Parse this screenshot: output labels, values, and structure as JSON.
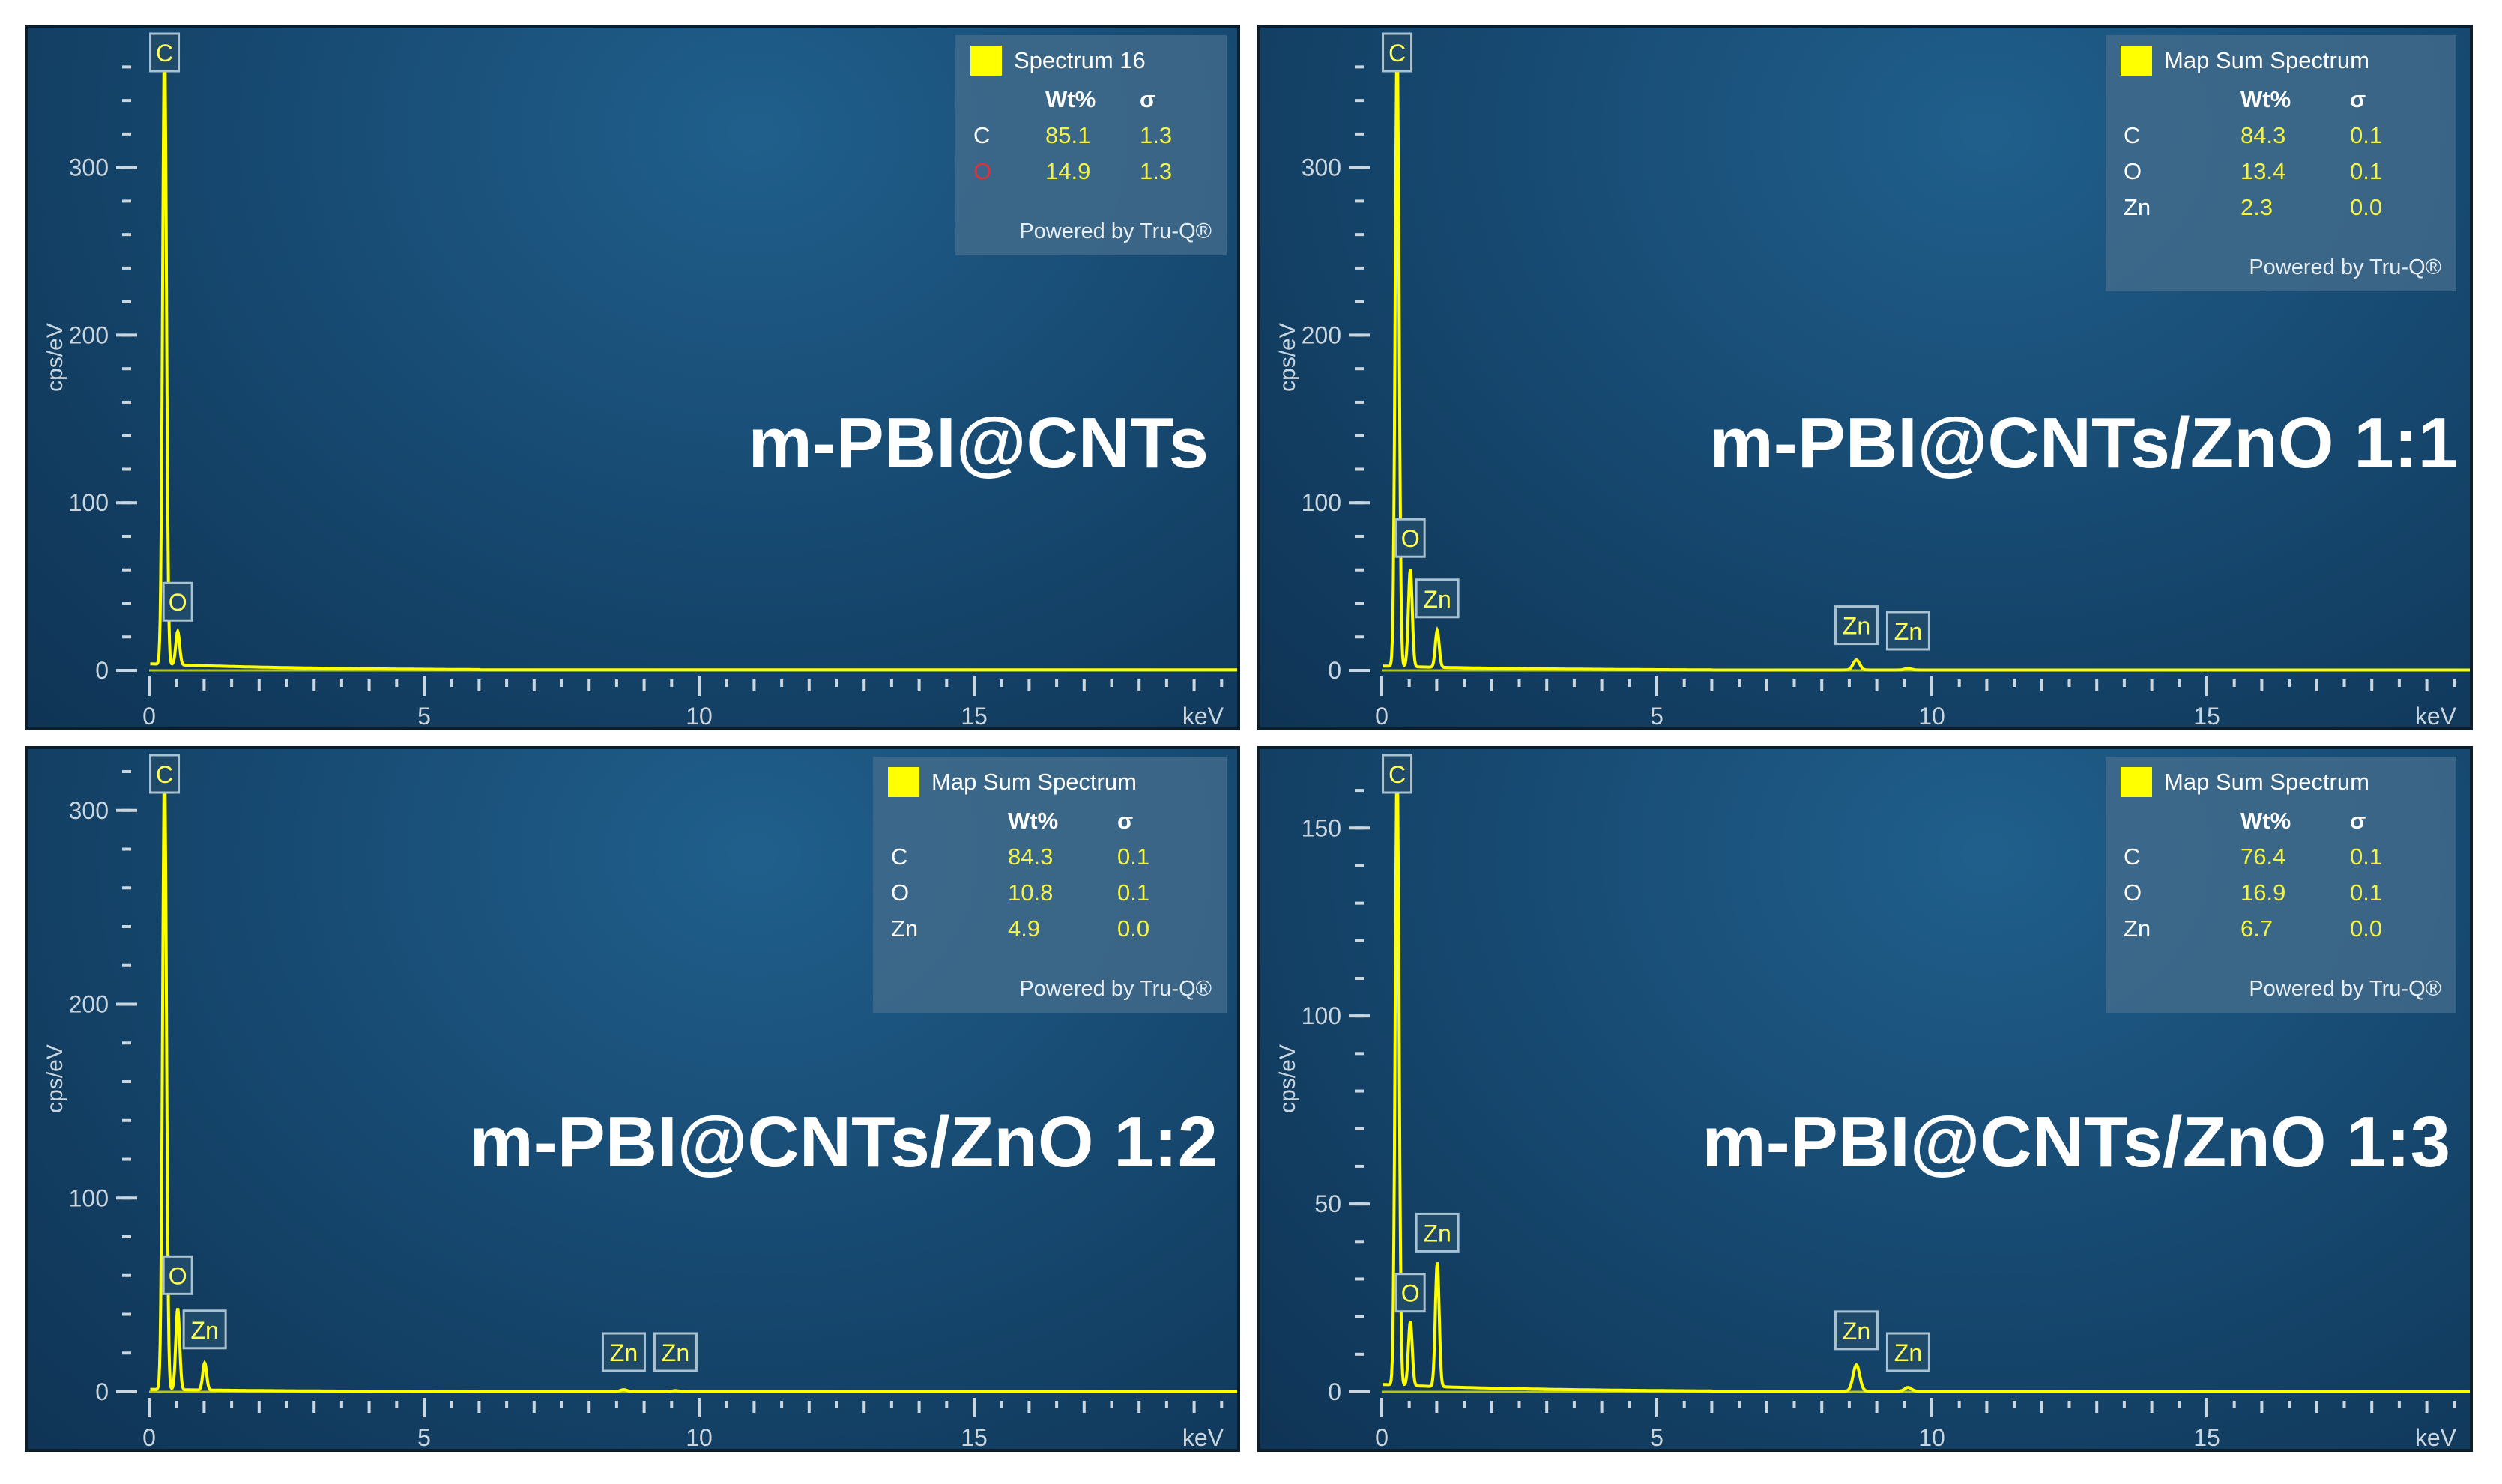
{
  "panels": [
    {
      "id": "p1",
      "sample_title": "m-PBI@CNTs",
      "legend": {
        "spectrum_name": "Spectrum 16",
        "col_wt": "Wt%",
        "col_sigma": "σ",
        "rows": [
          {
            "element": "C",
            "wt": "85.1",
            "sigma": "1.3",
            "element_color": "#ffffff"
          },
          {
            "element": "O",
            "wt": "14.9",
            "sigma": "1.3",
            "element_color": "#e0303a"
          }
        ],
        "powered_by": "Powered by Tru-Q®"
      }
    },
    {
      "id": "p2",
      "sample_title": "m-PBI@CNTs/ZnO 1:1",
      "legend": {
        "spectrum_name": "Map Sum Spectrum",
        "col_wt": "Wt%",
        "col_sigma": "σ",
        "rows": [
          {
            "element": "C",
            "wt": "84.3",
            "sigma": "0.1",
            "element_color": "#ffffff"
          },
          {
            "element": "O",
            "wt": "13.4",
            "sigma": "0.1",
            "element_color": "#ffffff"
          },
          {
            "element": "Zn",
            "wt": "2.3",
            "sigma": "0.0",
            "element_color": "#ffffff"
          }
        ],
        "powered_by": "Powered by Tru-Q®"
      }
    },
    {
      "id": "p3",
      "sample_title": "m-PBI@CNTs/ZnO 1:2",
      "legend": {
        "spectrum_name": "Map Sum Spectrum",
        "col_wt": "Wt%",
        "col_sigma": "σ",
        "rows": [
          {
            "element": "C",
            "wt": "84.3",
            "sigma": "0.1",
            "element_color": "#ffffff"
          },
          {
            "element": "O",
            "wt": "10.8",
            "sigma": "0.1",
            "element_color": "#ffffff"
          },
          {
            "element": "Zn",
            "wt": "4.9",
            "sigma": "0.0",
            "element_color": "#ffffff"
          }
        ],
        "powered_by": "Powered by Tru-Q®"
      }
    },
    {
      "id": "p4",
      "sample_title": "m-PBI@CNTs/ZnO 1:3",
      "legend": {
        "spectrum_name": "Map Sum Spectrum",
        "col_wt": "Wt%",
        "col_sigma": "σ",
        "rows": [
          {
            "element": "C",
            "wt": "76.4",
            "sigma": "0.1",
            "element_color": "#ffffff"
          },
          {
            "element": "O",
            "wt": "16.9",
            "sigma": "0.1",
            "element_color": "#ffffff"
          },
          {
            "element": "Zn",
            "wt": "6.7",
            "sigma": "0.0",
            "element_color": "#ffffff"
          }
        ],
        "powered_by": "Powered by Tru-Q®"
      }
    }
  ],
  "chart_data": [
    {
      "type": "line",
      "xlabel": "keV",
      "ylabel": "cps/eV",
      "xlim": [
        0,
        20
      ],
      "ylim": [
        0,
        370
      ],
      "xticks": [
        0,
        5,
        10,
        15
      ],
      "yticks": [
        0,
        100,
        200,
        300
      ],
      "series_color": "#ffff00",
      "grid": false,
      "peaks": [
        {
          "label": "C",
          "x": 0.28,
          "y": 370
        },
        {
          "label": "O",
          "x": 0.52,
          "y": 20
        }
      ],
      "background_level": 3
    },
    {
      "type": "line",
      "xlabel": "keV",
      "ylabel": "cps/eV",
      "xlim": [
        0,
        20
      ],
      "ylim": [
        0,
        370
      ],
      "xticks": [
        0,
        5,
        10,
        15
      ],
      "yticks": [
        0,
        100,
        200,
        300
      ],
      "series_color": "#ffff00",
      "grid": false,
      "peaks": [
        {
          "label": "C",
          "x": 0.28,
          "y": 370
        },
        {
          "label": "O",
          "x": 0.52,
          "y": 58
        },
        {
          "label": "Zn",
          "x": 1.01,
          "y": 22
        },
        {
          "label": "Zn",
          "x": 8.63,
          "y": 6
        },
        {
          "label": "Zn",
          "x": 9.57,
          "y": 1
        }
      ],
      "background_level": 2
    },
    {
      "type": "line",
      "xlabel": "keV",
      "ylabel": "cps/eV",
      "xlim": [
        0,
        20
      ],
      "ylim": [
        0,
        320
      ],
      "xticks": [
        0,
        5,
        10,
        15
      ],
      "yticks": [
        0,
        100,
        200,
        300
      ],
      "series_color": "#ffff00",
      "grid": false,
      "peaks": [
        {
          "label": "C",
          "x": 0.28,
          "y": 320
        },
        {
          "label": "O",
          "x": 0.52,
          "y": 42
        },
        {
          "label": "Zn",
          "x": 1.01,
          "y": 14
        },
        {
          "label": "Zn",
          "x": 8.63,
          "y": 1
        },
        {
          "label": "Zn",
          "x": 9.57,
          "y": 0.5
        }
      ],
      "background_level": 1
    },
    {
      "type": "line",
      "xlabel": "keV",
      "ylabel": "cps/eV",
      "xlim": [
        0,
        20
      ],
      "ylim": [
        0,
        165
      ],
      "xticks": [
        0,
        5,
        10,
        15
      ],
      "yticks": [
        0,
        50,
        100,
        150
      ],
      "series_color": "#ffff00",
      "grid": false,
      "peaks": [
        {
          "label": "C",
          "x": 0.28,
          "y": 165
        },
        {
          "label": "O",
          "x": 0.52,
          "y": 17
        },
        {
          "label": "Zn",
          "x": 1.01,
          "y": 33
        },
        {
          "label": "Zn",
          "x": 8.63,
          "y": 7
        },
        {
          "label": "Zn",
          "x": 9.57,
          "y": 1
        }
      ],
      "background_level": 1.5
    }
  ]
}
